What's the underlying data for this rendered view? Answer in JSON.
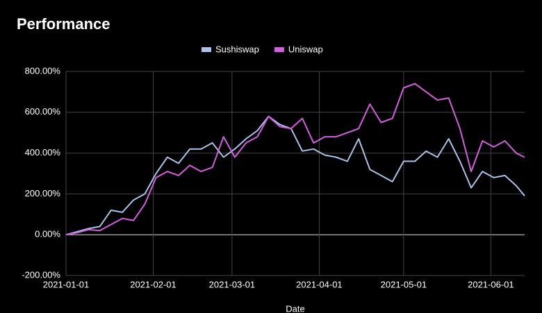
{
  "chart_data": {
    "type": "line",
    "title": "Performance",
    "xlabel": "Date",
    "x": [
      "2021-01-01",
      "2021-01-05",
      "2021-01-09",
      "2021-01-13",
      "2021-01-17",
      "2021-01-21",
      "2021-01-25",
      "2021-01-29",
      "2021-02-02",
      "2021-02-06",
      "2021-02-10",
      "2021-02-14",
      "2021-02-18",
      "2021-02-22",
      "2021-02-26",
      "2021-03-02",
      "2021-03-06",
      "2021-03-10",
      "2021-03-14",
      "2021-03-18",
      "2021-03-22",
      "2021-03-26",
      "2021-03-30",
      "2021-04-03",
      "2021-04-07",
      "2021-04-11",
      "2021-04-15",
      "2021-04-19",
      "2021-04-23",
      "2021-04-27",
      "2021-05-01",
      "2021-05-05",
      "2021-05-09",
      "2021-05-13",
      "2021-05-17",
      "2021-05-21",
      "2021-05-25",
      "2021-05-29",
      "2021-06-02",
      "2021-06-06",
      "2021-06-10",
      "2021-06-13"
    ],
    "series": [
      {
        "name": "Sushiswap",
        "color": "#a9c4eb",
        "values": [
          0,
          15,
          30,
          40,
          120,
          110,
          170,
          200,
          300,
          380,
          350,
          420,
          420,
          450,
          380,
          420,
          470,
          510,
          580,
          540,
          520,
          410,
          420,
          390,
          380,
          360,
          470,
          320,
          290,
          260,
          360,
          360,
          410,
          380,
          470,
          360,
          230,
          310,
          280,
          290,
          240,
          190
        ]
      },
      {
        "name": "Uniswap",
        "color": "#d65ee0",
        "values": [
          0,
          10,
          25,
          20,
          50,
          80,
          70,
          150,
          280,
          310,
          290,
          340,
          310,
          330,
          480,
          380,
          450,
          480,
          580,
          530,
          520,
          570,
          450,
          480,
          480,
          500,
          520,
          640,
          550,
          570,
          720,
          740,
          700,
          660,
          670,
          520,
          310,
          460,
          430,
          460,
          400,
          380
        ]
      }
    ],
    "xlim": [
      "2021-01-01",
      "2021-06-13"
    ],
    "xticks": [
      "2021-01-01",
      "2021-02-01",
      "2021-03-01",
      "2021-04-01",
      "2021-05-01",
      "2021-06-01"
    ],
    "ylim": [
      -200,
      800
    ],
    "yticks": [
      {
        "value": -200,
        "label": "-200.00%"
      },
      {
        "value": 0,
        "label": "0.00%"
      },
      {
        "value": 200,
        "label": "200.00%"
      },
      {
        "value": 400,
        "label": "400.00%"
      },
      {
        "value": 600,
        "label": "600.00%"
      },
      {
        "value": 800,
        "label": "800.00%"
      }
    ],
    "grid": true,
    "legend": "top"
  }
}
